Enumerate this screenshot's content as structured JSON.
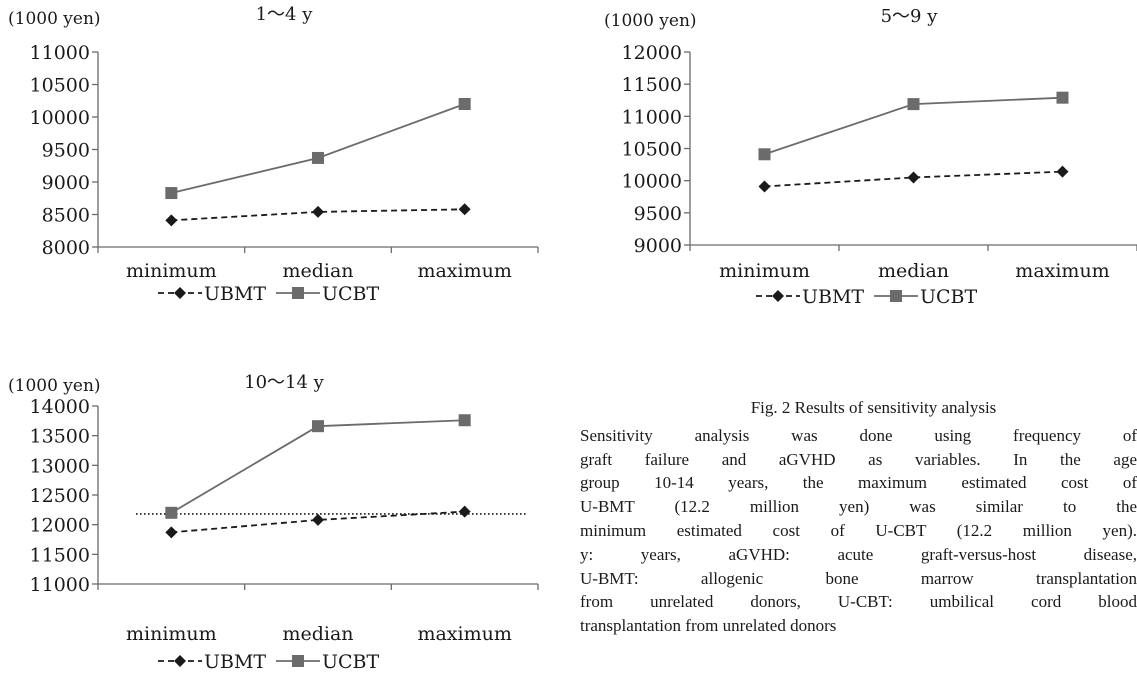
{
  "chart_data": [
    {
      "type": "line",
      "title": "1～4 y",
      "ylabel": "(1000 yen)",
      "categories": [
        "minimum",
        "median",
        "maximum"
      ],
      "ylim": [
        8000,
        11000
      ],
      "yticks": [
        "11000",
        "10500",
        "10000",
        "9500",
        "9000",
        "8500",
        "8000"
      ],
      "series": [
        {
          "name": "UBMT",
          "values": [
            8410,
            8540,
            8580
          ],
          "color": "#1a1a1a",
          "dash": "dashed",
          "marker": "diamond"
        },
        {
          "name": "UCBT",
          "values": [
            8830,
            9370,
            10200
          ],
          "color": "#6b6b6b",
          "dash": "solid",
          "marker": "square"
        }
      ],
      "legend": "bottom",
      "grid": false
    },
    {
      "type": "line",
      "title": "5～9 y",
      "ylabel": "(1000 yen)",
      "categories": [
        "minimum",
        "median",
        "maximum"
      ],
      "ylim": [
        9000,
        12000
      ],
      "yticks": [
        "12000",
        "11500",
        "11000",
        "10500",
        "10000",
        "9500",
        "9000"
      ],
      "series": [
        {
          "name": "UBMT",
          "values": [
            9910,
            10050,
            10140
          ],
          "color": "#1a1a1a",
          "dash": "dashed",
          "marker": "diamond"
        },
        {
          "name": "UCBT",
          "values": [
            10410,
            11190,
            11290
          ],
          "color": "#6b6b6b",
          "dash": "solid",
          "marker": "square"
        }
      ],
      "legend": "bottom",
      "grid": false
    },
    {
      "type": "line",
      "title": "10～14 y",
      "ylabel": "(1000 yen)",
      "categories": [
        "minimum",
        "median",
        "maximum"
      ],
      "ylim": [
        11000,
        14000
      ],
      "yticks": [
        "14000",
        "13500",
        "13000",
        "12500",
        "12000",
        "11500",
        "11000"
      ],
      "series": [
        {
          "name": "UBMT",
          "values": [
            11870,
            12080,
            12220
          ],
          "color": "#1a1a1a",
          "dash": "dashed",
          "marker": "diamond"
        },
        {
          "name": "UCBT",
          "values": [
            12200,
            13660,
            13760
          ],
          "color": "#6b6b6b",
          "dash": "solid",
          "marker": "square"
        }
      ],
      "reference_line": 12180,
      "legend": "bottom",
      "grid": false
    }
  ],
  "caption": {
    "title": "Fig. 2   Results of sensitivity analysis",
    "lines": [
      "Sensitivity analysis was done using frequency of",
      "graft failure and aGVHD as variables. In the age",
      "group 10-14 years, the maximum estimated cost of",
      "U-BMT (12.2 million yen) was similar to the",
      "minimum estimated cost of U-CBT (12.2 million yen).",
      "y: years, aGVHD: acute graft-versus-host disease,",
      "U-BMT: allogenic bone marrow transplantation",
      "from unrelated donors, U-CBT: umbilical cord blood",
      "transplantation from unrelated donors"
    ]
  }
}
